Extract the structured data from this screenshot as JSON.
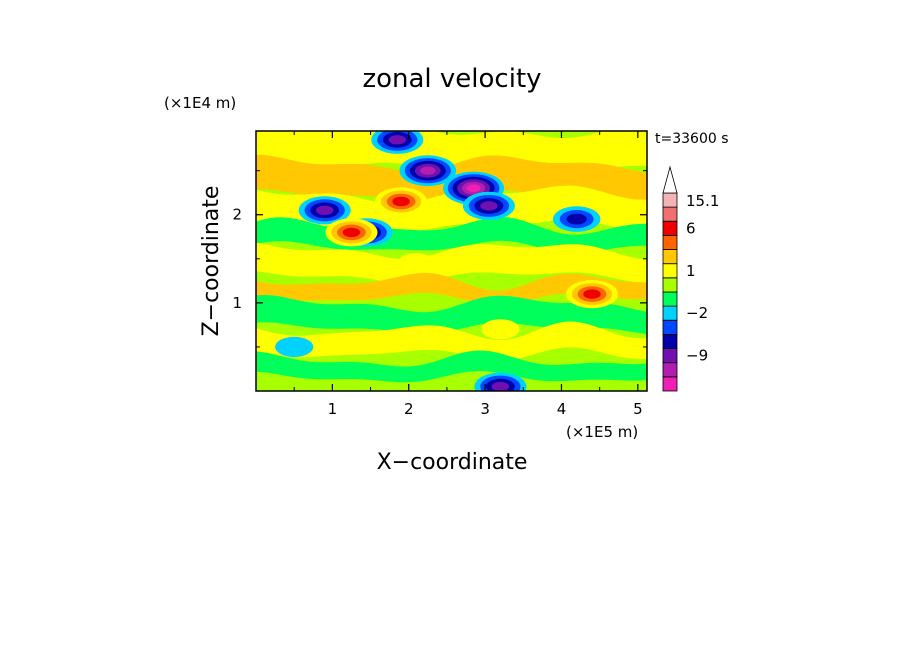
{
  "chart_data": {
    "type": "heatmap",
    "title": "zonal velocity",
    "xlabel": "X−coordinate",
    "ylabel": "Z−coordinate",
    "x_unit": "(×1E5 m)",
    "y_unit": "(×1E4 m)",
    "time_label": "t=33600 s",
    "xlim": [
      0,
      5.12
    ],
    "ylim": [
      0,
      2.95
    ],
    "x_ticks": [
      {
        "value": 1,
        "label": "1"
      },
      {
        "value": 2,
        "label": "2"
      },
      {
        "value": 3,
        "label": "3"
      },
      {
        "value": 4,
        "label": "4"
      },
      {
        "value": 5,
        "label": "5"
      }
    ],
    "y_ticks": [
      {
        "value": 1,
        "label": "1"
      },
      {
        "value": 2,
        "label": "2"
      }
    ],
    "colorbar": {
      "levels_low_to_high": [
        -15,
        -12,
        -9,
        -6,
        -3,
        -2,
        -1,
        0,
        1,
        2,
        3,
        6,
        9,
        12,
        15.1
      ],
      "colors_low_to_high": [
        "#ee1fb2",
        "#b01fb0",
        "#7010b0",
        "#0000aa",
        "#0048ff",
        "#00d2ff",
        "#00ff5a",
        "#a8ff00",
        "#ffff00",
        "#ffc800",
        "#ff6400",
        "#ee0000",
        "#f07070",
        "#f4b4b4",
        "#ffffff"
      ],
      "labels": [
        {
          "value": 15.1,
          "label": "15.1"
        },
        {
          "value": 6,
          "label": "6"
        },
        {
          "value": 1,
          "label": "1"
        },
        {
          "value": -2,
          "label": "−2"
        },
        {
          "value": -9,
          "label": "−9"
        }
      ]
    },
    "features": [
      {
        "x": 2.25,
        "z": 2.5,
        "value": -10
      },
      {
        "x": 2.85,
        "z": 2.3,
        "value": -12
      },
      {
        "x": 1.45,
        "z": 1.8,
        "value": -8
      },
      {
        "x": 3.05,
        "z": 2.1,
        "value": -6
      },
      {
        "x": 1.85,
        "z": 2.85,
        "value": -6
      },
      {
        "x": 0.9,
        "z": 2.05,
        "value": -6
      },
      {
        "x": 1.25,
        "z": 1.8,
        "value": 6
      },
      {
        "x": 1.9,
        "z": 2.15,
        "value": 6
      },
      {
        "x": 4.4,
        "z": 1.1,
        "value": 6
      },
      {
        "x": 3.2,
        "z": 0.05,
        "value": -6
      },
      {
        "x": 4.2,
        "z": 1.95,
        "value": -3
      },
      {
        "x": 2.1,
        "z": 1.45,
        "value": 1
      },
      {
        "x": 3.2,
        "z": 0.7,
        "value": 1
      },
      {
        "x": 0.5,
        "z": 0.5,
        "value": -1
      }
    ]
  }
}
